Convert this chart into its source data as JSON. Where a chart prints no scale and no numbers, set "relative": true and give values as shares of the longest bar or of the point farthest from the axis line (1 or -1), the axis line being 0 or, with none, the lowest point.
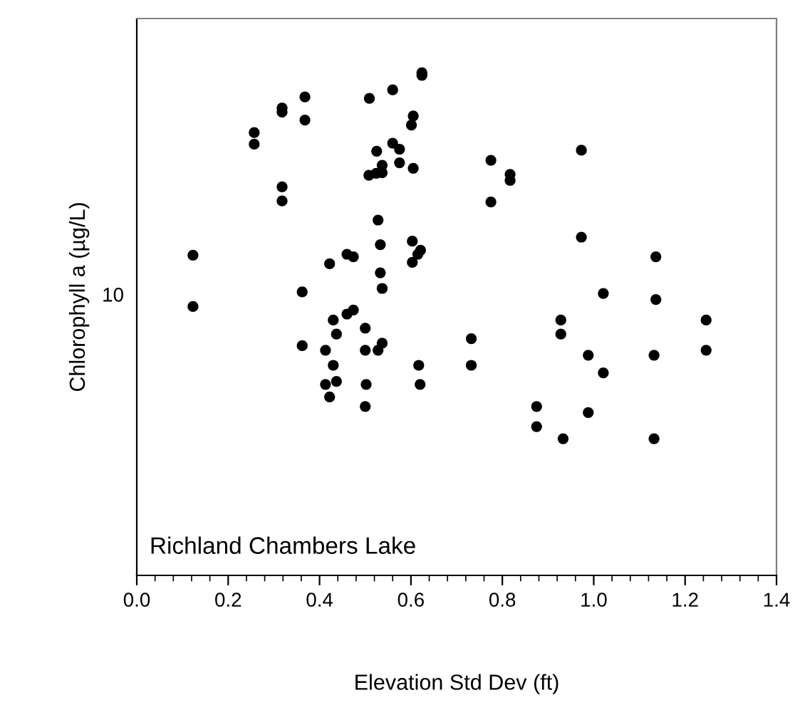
{
  "chart_data": {
    "type": "scatter",
    "relative": true,
    "xlabel": "Elevation Std Dev (ft)",
    "ylabel": "Chlorophyll a (µg/L)",
    "annotations": [
      "Richland Chambers Lake",
      "10"
    ],
    "grid": false,
    "legend": false,
    "marker": "circle",
    "xlim": [
      0,
      1.4
    ],
    "xticks": [
      {
        "value": 0,
        "label": "0.0"
      },
      {
        "value": 0.04,
        "label": null
      },
      {
        "value": 0.08,
        "label": null
      },
      {
        "value": 0.12,
        "label": null
      },
      {
        "value": 0.16,
        "label": null
      },
      {
        "value": 0.2,
        "label": "0.2"
      },
      {
        "value": 0.24,
        "label": null
      },
      {
        "value": 0.28,
        "label": null
      },
      {
        "value": 0.32,
        "label": null
      },
      {
        "value": 0.36,
        "label": null
      },
      {
        "value": 0.4,
        "label": "0.4"
      },
      {
        "value": 0.44,
        "label": null
      },
      {
        "value": 0.48,
        "label": null
      },
      {
        "value": 0.52,
        "label": null
      },
      {
        "value": 0.56,
        "label": null
      },
      {
        "value": 0.6,
        "label": "0.6"
      },
      {
        "value": 0.64,
        "label": null
      },
      {
        "value": 0.68,
        "label": null
      },
      {
        "value": 0.72,
        "label": null
      },
      {
        "value": 0.76,
        "label": null
      },
      {
        "value": 0.8,
        "label": "0.8"
      },
      {
        "value": 0.84,
        "label": null
      },
      {
        "value": 0.88,
        "label": null
      },
      {
        "value": 0.92,
        "label": null
      },
      {
        "value": 0.96,
        "label": null
      },
      {
        "value": 1.0,
        "label": "1.0"
      },
      {
        "value": 1.04,
        "label": null
      },
      {
        "value": 1.08,
        "label": null
      },
      {
        "value": 1.12,
        "label": null
      },
      {
        "value": 1.16,
        "label": null
      },
      {
        "value": 1.2,
        "label": "1.2"
      },
      {
        "value": 1.24,
        "label": null
      },
      {
        "value": 1.28,
        "label": null
      },
      {
        "value": 1.32,
        "label": null
      },
      {
        "value": 1.36,
        "label": null
      },
      {
        "value": 1.4,
        "label": "1.4"
      }
    ],
    "series": [
      {
        "color": "#000000",
        "x": [
          0.123,
          0.257,
          0.257,
          0.318,
          0.318,
          0.318,
          0.318,
          0.368,
          0.368,
          0.362,
          0.422,
          0.46,
          0.474,
          0.509,
          0.525,
          0.508,
          0.524,
          0.537,
          0.537,
          0.528,
          0.533,
          0.533,
          0.537,
          0.56,
          0.56,
          0.575,
          0.575,
          0.605,
          0.601,
          0.605,
          0.624,
          0.624,
          0.603,
          0.621,
          0.615,
          0.603,
          0.775,
          0.775,
          0.817,
          0.817,
          0.973,
          0.973,
          1.136,
          1.021,
          0.123,
          0.362,
          0.43,
          0.437,
          0.46,
          0.474,
          0.5,
          0.413,
          0.43,
          0.413,
          0.437,
          0.422,
          0.5,
          0.502,
          0.5,
          0.528,
          0.537,
          0.617,
          0.62,
          0.732,
          0.732,
          0.875,
          0.875,
          0.928,
          0.928,
          0.933,
          0.988,
          0.988,
          1.021,
          1.136,
          1.132,
          1.132,
          1.246,
          1.246
        ],
        "values": [
          0.637,
          0.881,
          0.858,
          0.93,
          0.922,
          0.773,
          0.745,
          0.952,
          0.906,
          0.564,
          0.62,
          0.639,
          0.634,
          0.949,
          0.844,
          0.796,
          0.8,
          0.816,
          0.801,
          0.707,
          0.658,
          0.602,
          0.571,
          0.966,
          0.86,
          0.848,
          0.821,
          0.914,
          0.896,
          0.81,
          1.0,
          0.995,
          0.665,
          0.647,
          0.639,
          0.623,
          0.826,
          0.743,
          0.798,
          0.786,
          0.846,
          0.673,
          0.634,
          0.561,
          0.535,
          0.457,
          0.508,
          0.48,
          0.52,
          0.528,
          0.492,
          0.448,
          0.418,
          0.38,
          0.386,
          0.355,
          0.448,
          0.38,
          0.336,
          0.448,
          0.462,
          0.418,
          0.38,
          0.471,
          0.418,
          0.336,
          0.296,
          0.508,
          0.48,
          0.272,
          0.438,
          0.324,
          0.403,
          0.549,
          0.438,
          0.272,
          0.508,
          0.448
        ]
      }
    ]
  }
}
